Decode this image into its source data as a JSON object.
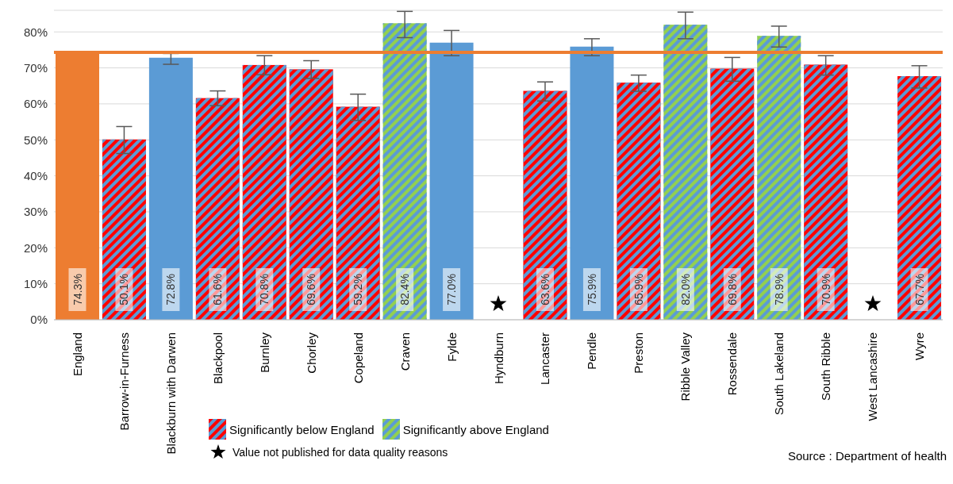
{
  "chart_data": {
    "type": "bar",
    "stacked": true,
    "categories": [
      "England",
      "Barrow-in-Furness",
      "Blackburn with Darwen",
      "Blackpool",
      "Burnley",
      "Chorley",
      "Copeland",
      "Craven",
      "Fylde",
      "Hyndburn",
      "Lancaster",
      "Pendle",
      "Preston",
      "Ribble Valley",
      "Rossendale",
      "South Lakeland",
      "South Ribble",
      "West Lancashire",
      "Wyre"
    ],
    "series": [
      {
        "color": "#ed7d31",
        "values": [
          74.3,
          null,
          null,
          null,
          null,
          null,
          null,
          null,
          null,
          null,
          null,
          null,
          null,
          null,
          null,
          null,
          null,
          null,
          null
        ],
        "value_labels": [
          "74.3%",
          null,
          null,
          null,
          null,
          null,
          null,
          null,
          null,
          null,
          null,
          null,
          null,
          null,
          null,
          null,
          null,
          null,
          null
        ],
        "errors": [
          [
            74.2,
            74.4
          ],
          null,
          null,
          null,
          null,
          null,
          null,
          null,
          null,
          null,
          null,
          null,
          null,
          null,
          null,
          null,
          null,
          null,
          null
        ]
      },
      {
        "color": "#5b9bd5",
        "values": [
          null,
          null,
          72.8,
          null,
          null,
          null,
          null,
          null,
          77.0,
          null,
          null,
          75.9,
          null,
          null,
          null,
          null,
          null,
          null,
          null
        ],
        "value_labels": [
          null,
          null,
          "72.8%",
          null,
          null,
          null,
          null,
          null,
          "77.0%",
          null,
          null,
          "75.9%",
          null,
          null,
          null,
          null,
          null,
          null,
          null
        ],
        "errors": [
          null,
          null,
          [
            71.0,
            74.0
          ],
          null,
          null,
          null,
          null,
          null,
          [
            73.4,
            80.4
          ],
          null,
          null,
          [
            73.4,
            78.1
          ],
          null,
          null,
          null,
          null,
          null,
          null,
          null
        ]
      },
      {
        "name": "Significantly below England",
        "color": "#ff0000",
        "values": [
          null,
          50.1,
          null,
          61.6,
          70.8,
          69.6,
          59.2,
          null,
          null,
          null,
          63.6,
          null,
          65.9,
          null,
          69.8,
          null,
          70.9,
          null,
          67.7
        ],
        "value_labels": [
          null,
          "50.1%",
          null,
          "61.6%",
          "70.8%",
          "69.6%",
          "59.2%",
          null,
          null,
          null,
          "63.6%",
          null,
          "65.9%",
          null,
          "69.8%",
          null,
          "70.9%",
          null,
          "67.7%"
        ],
        "errors": [
          null,
          [
            46.2,
            53.7
          ],
          null,
          [
            59.5,
            63.6
          ],
          [
            68.1,
            73.4
          ],
          [
            67.1,
            72.0
          ],
          [
            55.4,
            62.7
          ],
          null,
          null,
          null,
          [
            60.8,
            66.1
          ],
          null,
          [
            63.5,
            68.0
          ],
          null,
          [
            66.3,
            72.9
          ],
          null,
          [
            68.0,
            73.4
          ],
          null,
          [
            64.4,
            70.6
          ]
        ]
      },
      {
        "name": "Significantly above England",
        "color": "#92d050",
        "values": [
          null,
          null,
          null,
          null,
          null,
          null,
          null,
          82.4,
          null,
          null,
          null,
          null,
          null,
          82.0,
          null,
          78.9,
          null,
          null,
          null
        ],
        "value_labels": [
          null,
          null,
          null,
          null,
          null,
          null,
          null,
          "82.4%",
          null,
          null,
          null,
          null,
          null,
          "82.0%",
          null,
          "78.9%",
          null,
          null,
          null
        ],
        "errors": [
          null,
          null,
          null,
          null,
          null,
          null,
          null,
          [
            78.4,
            85.7
          ],
          null,
          null,
          null,
          null,
          null,
          [
            78.1,
            85.5
          ],
          null,
          [
            75.8,
            81.6
          ],
          null,
          null,
          null
        ]
      }
    ],
    "ylim": [
      0,
      86
    ],
    "yticks": [
      {
        "value": 0,
        "label": "0%"
      },
      {
        "value": 10,
        "label": "10%"
      },
      {
        "value": 20,
        "label": "20%"
      },
      {
        "value": 30,
        "label": "30%"
      },
      {
        "value": 40,
        "label": "40%"
      },
      {
        "value": 50,
        "label": "50%"
      },
      {
        "value": 60,
        "label": "60%"
      },
      {
        "value": 70,
        "label": "70%"
      },
      {
        "value": 80,
        "label": "80%"
      }
    ],
    "grid": "y",
    "ref_lines": [
      {
        "axis": "y",
        "value": 74.3,
        "color": "#ed7d31"
      }
    ],
    "legend": "bottom",
    "annotations": [
      "Value not published for data quality reasons",
      "Source : Department of health"
    ]
  }
}
